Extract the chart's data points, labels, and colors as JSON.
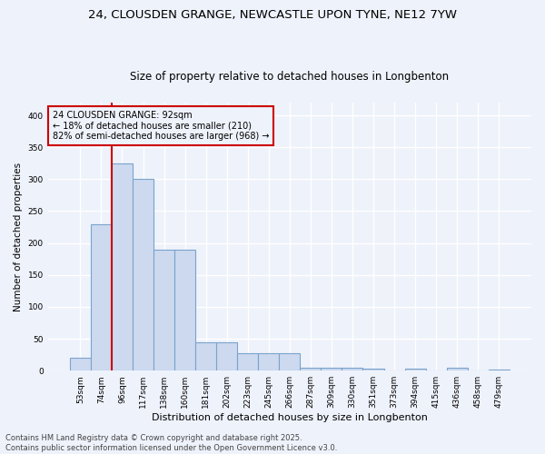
{
  "title1": "24, CLOUSDEN GRANGE, NEWCASTLE UPON TYNE, NE12 7YW",
  "title2": "Size of property relative to detached houses in Longbenton",
  "xlabel": "Distribution of detached houses by size in Longbenton",
  "ylabel": "Number of detached properties",
  "bar_labels": [
    "53sqm",
    "74sqm",
    "96sqm",
    "117sqm",
    "138sqm",
    "160sqm",
    "181sqm",
    "202sqm",
    "223sqm",
    "245sqm",
    "266sqm",
    "287sqm",
    "309sqm",
    "330sqm",
    "351sqm",
    "373sqm",
    "394sqm",
    "415sqm",
    "436sqm",
    "458sqm",
    "479sqm"
  ],
  "bar_values": [
    20,
    230,
    325,
    300,
    190,
    190,
    45,
    45,
    27,
    27,
    28,
    5,
    5,
    5,
    3,
    0,
    3,
    0,
    5,
    0,
    2
  ],
  "bar_color": "#cdd9ef",
  "bar_edge_color": "#7aa3cc",
  "vline_color": "#cc0000",
  "annotation_text": "24 CLOUSDEN GRANGE: 92sqm\n← 18% of detached houses are smaller (210)\n82% of semi-detached houses are larger (968) →",
  "annotation_fontsize": 7.0,
  "annotation_box_color": "#cc0000",
  "footer_text": "Contains HM Land Registry data © Crown copyright and database right 2025.\nContains public sector information licensed under the Open Government Licence v3.0.",
  "ylim": [
    0,
    420
  ],
  "background_color": "#eef2fb",
  "grid_color": "#ffffff",
  "title1_fontsize": 9.5,
  "title2_fontsize": 8.5,
  "ylabel_fontsize": 7.5,
  "xlabel_fontsize": 8.0,
  "tick_fontsize": 6.5,
  "footer_fontsize": 6.0
}
